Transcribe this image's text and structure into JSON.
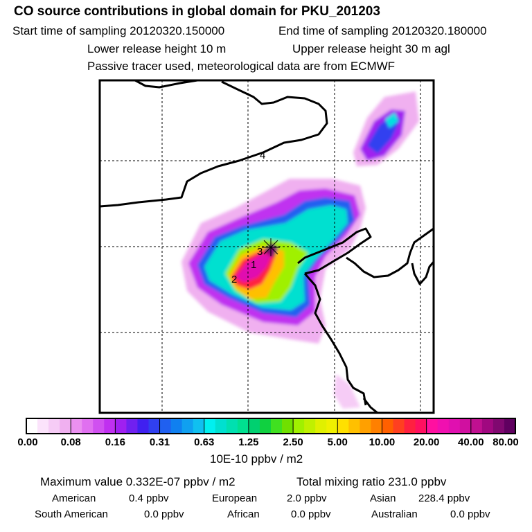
{
  "title": "CO  source contributions in global domain for PKU_201203",
  "sampling": {
    "start": "Start time of sampling 20120320.150000",
    "end": "End time of sampling 20120320.180000"
  },
  "release": {
    "lower": "Lower release height   10 m",
    "upper": "Upper release height   30 m    agl"
  },
  "note": "Passive tracer used, meteorological data are from ECMWF",
  "map": {
    "markers": [
      "1",
      "2",
      "3",
      "4"
    ]
  },
  "colorbar": {
    "tick_labels": [
      "0.00",
      "0.08",
      "0.16",
      "0.31",
      "0.63",
      "1.25",
      "2.50",
      "5.00",
      "10.00",
      "20.00",
      "40.00",
      "80.00"
    ],
    "colors": [
      "#ffffff",
      "#fbe3fb",
      "#f6ccf6",
      "#f0b0f0",
      "#ea90f0",
      "#e070f0",
      "#d050f0",
      "#c030f0",
      "#a020f0",
      "#7020f0",
      "#4020f0",
      "#3040f0",
      "#2060f0",
      "#1080f0",
      "#10a0f0",
      "#10c0f0",
      "#00f0f0",
      "#00e0d0",
      "#00e0b0",
      "#00e090",
      "#00d070",
      "#10d040",
      "#40e020",
      "#70e000",
      "#a0f000",
      "#c0f000",
      "#e0f000",
      "#f0f000",
      "#ffe000",
      "#ffc000",
      "#ffa000",
      "#ff8000",
      "#ff6000",
      "#ff4020",
      "#ff2040",
      "#ff1060",
      "#ff10a0",
      "#f010b0",
      "#e010b0",
      "#d010a0",
      "#c01090",
      "#a00880",
      "#800870",
      "#600060"
    ],
    "units": "10E-10 ppbv / m2"
  },
  "stats": {
    "maximum": "Maximum value  0.332E-07 ppbv / m2",
    "total": "Total mixing ratio      231.0 ppbv",
    "regions": [
      {
        "name": "American",
        "value": "0.4 ppbv"
      },
      {
        "name": "European",
        "value": "2.0 ppbv"
      },
      {
        "name": "Asian",
        "value": "228.4 ppbv"
      },
      {
        "name": "South American",
        "value": "0.0 ppbv"
      },
      {
        "name": "African",
        "value": "0.0 ppbv"
      },
      {
        "name": "Australian",
        "value": "0.0 ppbv"
      }
    ]
  }
}
